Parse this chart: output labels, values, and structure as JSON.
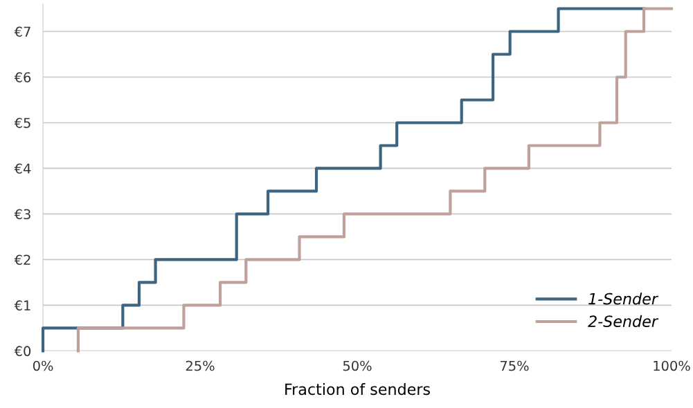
{
  "chart_data": {
    "type": "step",
    "xlabel": "Fraction of senders",
    "series": [
      {
        "name": "1-Sender",
        "color": "#3d6480",
        "x": [
          0,
          0,
          12.7,
          15.3,
          17.9,
          30.8,
          35.8,
          43.5,
          53.7,
          56.3,
          66.6,
          71.6,
          74.3,
          82.0,
          95.6
        ],
        "values": [
          0,
          0.5,
          1,
          1.5,
          2,
          3,
          3.5,
          4,
          4.5,
          5,
          5.5,
          6.5,
          7,
          7.5,
          7.5
        ]
      },
      {
        "name": "2-Sender",
        "color": "#bfa09b",
        "x": [
          5.6,
          5.6,
          22.4,
          28.2,
          32.3,
          40.8,
          47.9,
          64.8,
          70.3,
          77.3,
          88.6,
          91.3,
          92.7,
          95.6,
          100
        ],
        "values": [
          0,
          0.5,
          1,
          1.5,
          2,
          2.5,
          3,
          3.5,
          4,
          4.5,
          5,
          6,
          7,
          7.5,
          7.5
        ]
      }
    ],
    "xlim": [
      0,
      100
    ],
    "ylim": [
      0,
      7.6
    ],
    "xticks": [
      {
        "value": 0,
        "label": "0%"
      },
      {
        "value": 25,
        "label": "25%"
      },
      {
        "value": 50,
        "label": "50%"
      },
      {
        "value": 75,
        "label": "75%"
      },
      {
        "value": 100,
        "label": "100%"
      }
    ],
    "yticks": [
      {
        "value": 0,
        "label": "€0"
      },
      {
        "value": 1,
        "label": "€1"
      },
      {
        "value": 2,
        "label": "€2"
      },
      {
        "value": 3,
        "label": "€3"
      },
      {
        "value": 4,
        "label": "€4"
      },
      {
        "value": 5,
        "label": "€5"
      },
      {
        "value": 6,
        "label": "€6"
      },
      {
        "value": 7,
        "label": "€7"
      }
    ],
    "grid": "y",
    "legend": "bottom right"
  }
}
